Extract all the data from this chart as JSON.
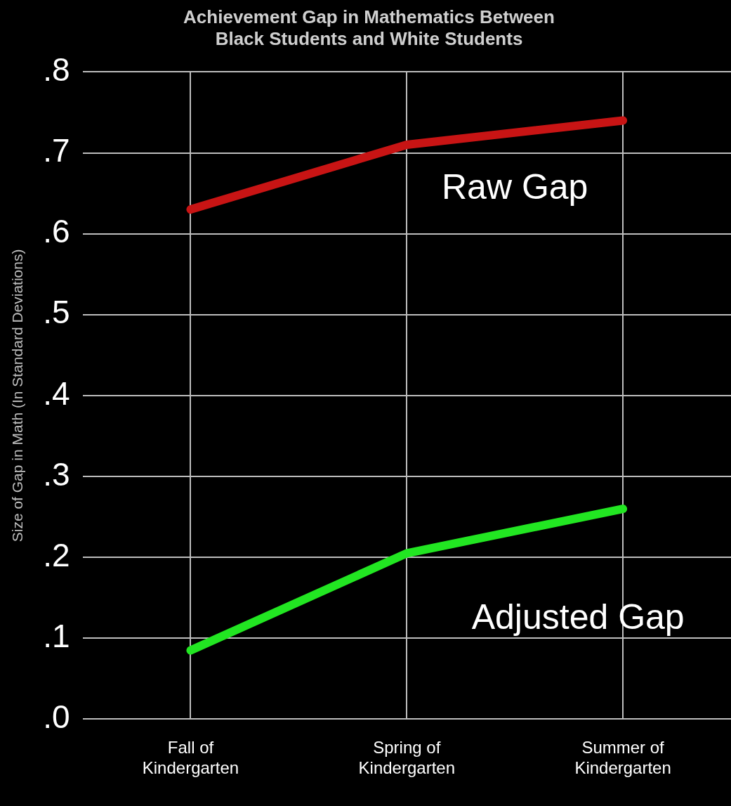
{
  "chart_data": {
    "type": "line",
    "title": "Achievement Gap in Mathematics Between Black Students and White Students",
    "ylabel": "Size of Gap in Math (In Standard Deviations)",
    "categories": [
      "Fall of Kindergarten",
      "Spring of Kindergarten",
      "Summer of Kindergarten"
    ],
    "series": [
      {
        "name": "Raw Gap",
        "color": "#c81414",
        "values": [
          0.63,
          0.71,
          0.74
        ]
      },
      {
        "name": "Adjusted Gap",
        "color": "#22e622",
        "values": [
          0.085,
          0.205,
          0.26
        ]
      }
    ],
    "ylim": [
      0,
      0.8
    ],
    "yticks": [
      {
        "value": 0,
        "label": ".0"
      },
      {
        "value": 0.1,
        "label": ".1"
      },
      {
        "value": 0.2,
        "label": ".2"
      },
      {
        "value": 0.3,
        "label": ".3"
      },
      {
        "value": 0.4,
        "label": ".4"
      },
      {
        "value": 0.5,
        "label": ".5"
      },
      {
        "value": 0.6,
        "label": ".6"
      },
      {
        "value": 0.7,
        "label": ".7"
      },
      {
        "value": 0.8,
        "label": ".8"
      }
    ],
    "grid": true,
    "legend": false,
    "marker": "none",
    "line_style": "solid"
  }
}
